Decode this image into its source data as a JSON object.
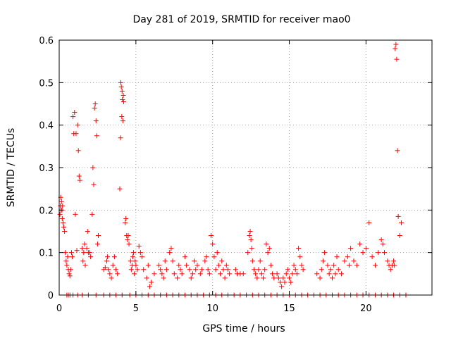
{
  "chart_data": {
    "type": "scatter",
    "title": "Day 281 of 2019, SRMTID for receiver mao0",
    "xlabel": "GPS time / hours",
    "ylabel": "SRMTID / TECUs",
    "xlim": [
      0,
      24.3
    ],
    "ylim": [
      0,
      0.6
    ],
    "grid": true,
    "marker": "+",
    "point_color": "#ff0000",
    "x_ticks": [
      0,
      5,
      10,
      15,
      20
    ],
    "x_tick_labels": [
      "0",
      "5",
      "10",
      "15",
      "20"
    ],
    "y_ticks": [
      0,
      0.1,
      0.2,
      0.3,
      0.4,
      0.5,
      0.6
    ],
    "y_tick_labels": [
      "0",
      "0.1",
      "0.2",
      "0.3",
      "0.4",
      "0.5",
      "0.6"
    ],
    "series": [
      {
        "name": "SRMTID",
        "points": [
          [
            0.05,
            0.19
          ],
          [
            0.08,
            0.21
          ],
          [
            0.1,
            0.23
          ],
          [
            0.12,
            0.2
          ],
          [
            0.15,
            0.22
          ],
          [
            0.18,
            0.2
          ],
          [
            0.2,
            0.18
          ],
          [
            0.22,
            0.21
          ],
          [
            0.25,
            0.17
          ],
          [
            0.3,
            0.16
          ],
          [
            0.35,
            0.15
          ],
          [
            0.4,
            0.1
          ],
          [
            0.45,
            0.08
          ],
          [
            0.5,
            0.07
          ],
          [
            0.55,
            0.09
          ],
          [
            0.6,
            0.06
          ],
          [
            0.65,
            0.05
          ],
          [
            0.7,
            0.045
          ],
          [
            0.75,
            0.06
          ],
          [
            0.8,
            0.1
          ],
          [
            0.85,
            0.09
          ],
          [
            0.9,
            0.42
          ],
          [
            0.95,
            0.38
          ],
          [
            1.0,
            0.43
          ],
          [
            1.05,
            0.19
          ],
          [
            1.1,
            0.38
          ],
          [
            1.15,
            0.105
          ],
          [
            1.2,
            0.4
          ],
          [
            1.25,
            0.34
          ],
          [
            1.3,
            0.28
          ],
          [
            1.35,
            0.27
          ],
          [
            1.5,
            0.11
          ],
          [
            1.55,
            0.08
          ],
          [
            1.6,
            0.1
          ],
          [
            1.65,
            0.12
          ],
          [
            1.7,
            0.07
          ],
          [
            1.8,
            0.11
          ],
          [
            1.85,
            0.15
          ],
          [
            1.9,
            0.1
          ],
          [
            2.0,
            0.1
          ],
          [
            2.05,
            0.09
          ],
          [
            2.15,
            0.19
          ],
          [
            2.2,
            0.3
          ],
          [
            2.25,
            0.26
          ],
          [
            2.3,
            0.44
          ],
          [
            2.35,
            0.45
          ],
          [
            2.4,
            0.41
          ],
          [
            2.45,
            0.375
          ],
          [
            2.5,
            0.12
          ],
          [
            2.55,
            0.14
          ],
          [
            2.9,
            0.06
          ],
          [
            3.0,
            0.065
          ],
          [
            3.1,
            0.08
          ],
          [
            3.15,
            0.09
          ],
          [
            3.2,
            0.06
          ],
          [
            3.3,
            0.05
          ],
          [
            3.4,
            0.04
          ],
          [
            3.5,
            0.07
          ],
          [
            3.6,
            0.09
          ],
          [
            3.7,
            0.06
          ],
          [
            3.8,
            0.05
          ],
          [
            3.95,
            0.25
          ],
          [
            4.0,
            0.37
          ],
          [
            4.02,
            0.5
          ],
          [
            4.05,
            0.49
          ],
          [
            4.08,
            0.42
          ],
          [
            4.1,
            0.48
          ],
          [
            4.12,
            0.46
          ],
          [
            4.15,
            0.41
          ],
          [
            4.18,
            0.47
          ],
          [
            4.2,
            0.455
          ],
          [
            4.3,
            0.17
          ],
          [
            4.35,
            0.18
          ],
          [
            4.4,
            0.14
          ],
          [
            4.45,
            0.13
          ],
          [
            4.5,
            0.14
          ],
          [
            4.55,
            0.12
          ],
          [
            4.65,
            0.08
          ],
          [
            4.7,
            0.06
          ],
          [
            4.75,
            0.07
          ],
          [
            4.8,
            0.09
          ],
          [
            4.85,
            0.1
          ],
          [
            4.9,
            0.05
          ],
          [
            4.95,
            0.08
          ],
          [
            5.0,
            0.07
          ],
          [
            5.1,
            0.06
          ],
          [
            5.2,
            0.115
          ],
          [
            5.3,
            0.1
          ],
          [
            5.4,
            0.09
          ],
          [
            5.5,
            0.06
          ],
          [
            5.7,
            0.04
          ],
          [
            5.8,
            0.07
          ],
          [
            5.9,
            0.02
          ],
          [
            6.0,
            0.03
          ],
          [
            6.2,
            0.05
          ],
          [
            6.5,
            0.07
          ],
          [
            6.6,
            0.06
          ],
          [
            6.7,
            0.05
          ],
          [
            6.8,
            0.04
          ],
          [
            6.9,
            0.08
          ],
          [
            7.0,
            0.06
          ],
          [
            7.2,
            0.1
          ],
          [
            7.3,
            0.11
          ],
          [
            7.4,
            0.08
          ],
          [
            7.5,
            0.05
          ],
          [
            7.7,
            0.04
          ],
          [
            7.8,
            0.07
          ],
          [
            7.9,
            0.06
          ],
          [
            8.0,
            0.05
          ],
          [
            8.2,
            0.09
          ],
          [
            8.3,
            0.07
          ],
          [
            8.5,
            0.06
          ],
          [
            8.6,
            0.04
          ],
          [
            8.7,
            0.05
          ],
          [
            8.8,
            0.08
          ],
          [
            8.9,
            0.06
          ],
          [
            9.0,
            0.07
          ],
          [
            9.2,
            0.05
          ],
          [
            9.3,
            0.06
          ],
          [
            9.5,
            0.08
          ],
          [
            9.6,
            0.09
          ],
          [
            9.7,
            0.06
          ],
          [
            9.8,
            0.05
          ],
          [
            9.9,
            0.14
          ],
          [
            10.0,
            0.12
          ],
          [
            10.1,
            0.09
          ],
          [
            10.2,
            0.06
          ],
          [
            10.3,
            0.1
          ],
          [
            10.4,
            0.07
          ],
          [
            10.5,
            0.05
          ],
          [
            10.6,
            0.08
          ],
          [
            10.7,
            0.06
          ],
          [
            10.8,
            0.04
          ],
          [
            10.9,
            0.07
          ],
          [
            11.0,
            0.06
          ],
          [
            11.1,
            0.05
          ],
          [
            11.5,
            0.06
          ],
          [
            11.6,
            0.05
          ],
          [
            11.8,
            0.05
          ],
          [
            12.0,
            0.05
          ],
          [
            12.3,
            0.1
          ],
          [
            12.4,
            0.14
          ],
          [
            12.45,
            0.15
          ],
          [
            12.5,
            0.13
          ],
          [
            12.55,
            0.11
          ],
          [
            12.6,
            0.08
          ],
          [
            12.7,
            0.06
          ],
          [
            12.8,
            0.05
          ],
          [
            12.9,
            0.04
          ],
          [
            13.0,
            0.06
          ],
          [
            13.1,
            0.08
          ],
          [
            13.2,
            0.05
          ],
          [
            13.3,
            0.04
          ],
          [
            13.4,
            0.06
          ],
          [
            13.5,
            0.12
          ],
          [
            13.6,
            0.1
          ],
          [
            13.7,
            0.11
          ],
          [
            13.8,
            0.07
          ],
          [
            13.9,
            0.05
          ],
          [
            14.0,
            0.04
          ],
          [
            14.2,
            0.05
          ],
          [
            14.3,
            0.04
          ],
          [
            14.4,
            0.03
          ],
          [
            14.5,
            0.02
          ],
          [
            14.6,
            0.04
          ],
          [
            14.7,
            0.03
          ],
          [
            14.8,
            0.05
          ],
          [
            14.9,
            0.06
          ],
          [
            15.0,
            0.04
          ],
          [
            15.1,
            0.03
          ],
          [
            15.2,
            0.05
          ],
          [
            15.3,
            0.07
          ],
          [
            15.4,
            0.06
          ],
          [
            15.5,
            0.05
          ],
          [
            15.6,
            0.11
          ],
          [
            15.7,
            0.09
          ],
          [
            15.8,
            0.07
          ],
          [
            15.9,
            0.06
          ],
          [
            16.8,
            0.05
          ],
          [
            17.0,
            0.04
          ],
          [
            17.1,
            0.06
          ],
          [
            17.2,
            0.08
          ],
          [
            17.3,
            0.1
          ],
          [
            17.5,
            0.07
          ],
          [
            17.6,
            0.05
          ],
          [
            17.7,
            0.06
          ],
          [
            17.8,
            0.04
          ],
          [
            17.9,
            0.07
          ],
          [
            18.0,
            0.05
          ],
          [
            18.1,
            0.09
          ],
          [
            18.2,
            0.06
          ],
          [
            18.4,
            0.05
          ],
          [
            18.6,
            0.08
          ],
          [
            18.8,
            0.09
          ],
          [
            18.9,
            0.07
          ],
          [
            19.0,
            0.11
          ],
          [
            19.2,
            0.08
          ],
          [
            19.4,
            0.07
          ],
          [
            19.6,
            0.12
          ],
          [
            19.8,
            0.1
          ],
          [
            20.0,
            0.11
          ],
          [
            20.2,
            0.17
          ],
          [
            20.4,
            0.09
          ],
          [
            20.6,
            0.07
          ],
          [
            20.8,
            0.1
          ],
          [
            21.0,
            0.13
          ],
          [
            21.1,
            0.12
          ],
          [
            21.2,
            0.1
          ],
          [
            21.4,
            0.08
          ],
          [
            21.5,
            0.07
          ],
          [
            21.6,
            0.06
          ],
          [
            21.7,
            0.07
          ],
          [
            21.8,
            0.08
          ],
          [
            21.85,
            0.07
          ],
          [
            21.9,
            0.58
          ],
          [
            21.95,
            0.59
          ],
          [
            22.0,
            0.555
          ],
          [
            22.05,
            0.34
          ],
          [
            22.1,
            0.185
          ],
          [
            22.2,
            0.14
          ],
          [
            22.3,
            0.17
          ],
          [
            0.5,
            0
          ],
          [
            0.6,
            0
          ],
          [
            0.7,
            0
          ],
          [
            0.9,
            0
          ],
          [
            1.2,
            0
          ],
          [
            1.5,
            0
          ],
          [
            1.9,
            0
          ],
          [
            2.4,
            0
          ],
          [
            2.9,
            0
          ],
          [
            3.3,
            0
          ],
          [
            3.7,
            0
          ],
          [
            4.1,
            0
          ],
          [
            4.6,
            0
          ],
          [
            5.0,
            0
          ],
          [
            5.4,
            0
          ],
          [
            5.8,
            0
          ],
          [
            6.2,
            0
          ],
          [
            6.6,
            0
          ],
          [
            7.0,
            0
          ],
          [
            7.4,
            0
          ],
          [
            7.8,
            0
          ],
          [
            8.2,
            0
          ],
          [
            8.6,
            0
          ],
          [
            9.0,
            0
          ],
          [
            9.4,
            0
          ],
          [
            9.8,
            0
          ],
          [
            10.2,
            0
          ],
          [
            10.6,
            0
          ],
          [
            11.0,
            0
          ],
          [
            11.4,
            0
          ],
          [
            11.8,
            0
          ],
          [
            12.2,
            0
          ],
          [
            12.6,
            0
          ],
          [
            13.0,
            0
          ],
          [
            13.4,
            0
          ],
          [
            13.8,
            0
          ],
          [
            14.2,
            0
          ],
          [
            14.6,
            0
          ],
          [
            15.0,
            0
          ],
          [
            15.4,
            0
          ],
          [
            15.8,
            0
          ],
          [
            16.2,
            0
          ],
          [
            16.6,
            0
          ],
          [
            17.0,
            0
          ],
          [
            17.4,
            0
          ],
          [
            17.8,
            0
          ],
          [
            18.2,
            0
          ],
          [
            18.6,
            0
          ],
          [
            19.0,
            0
          ],
          [
            19.4,
            0
          ],
          [
            19.8,
            0
          ],
          [
            20.2,
            0
          ],
          [
            20.6,
            0
          ],
          [
            21.0,
            0
          ],
          [
            21.4,
            0
          ],
          [
            21.8,
            0
          ],
          [
            22.2,
            0
          ],
          [
            22.6,
            0
          ]
        ]
      }
    ]
  }
}
